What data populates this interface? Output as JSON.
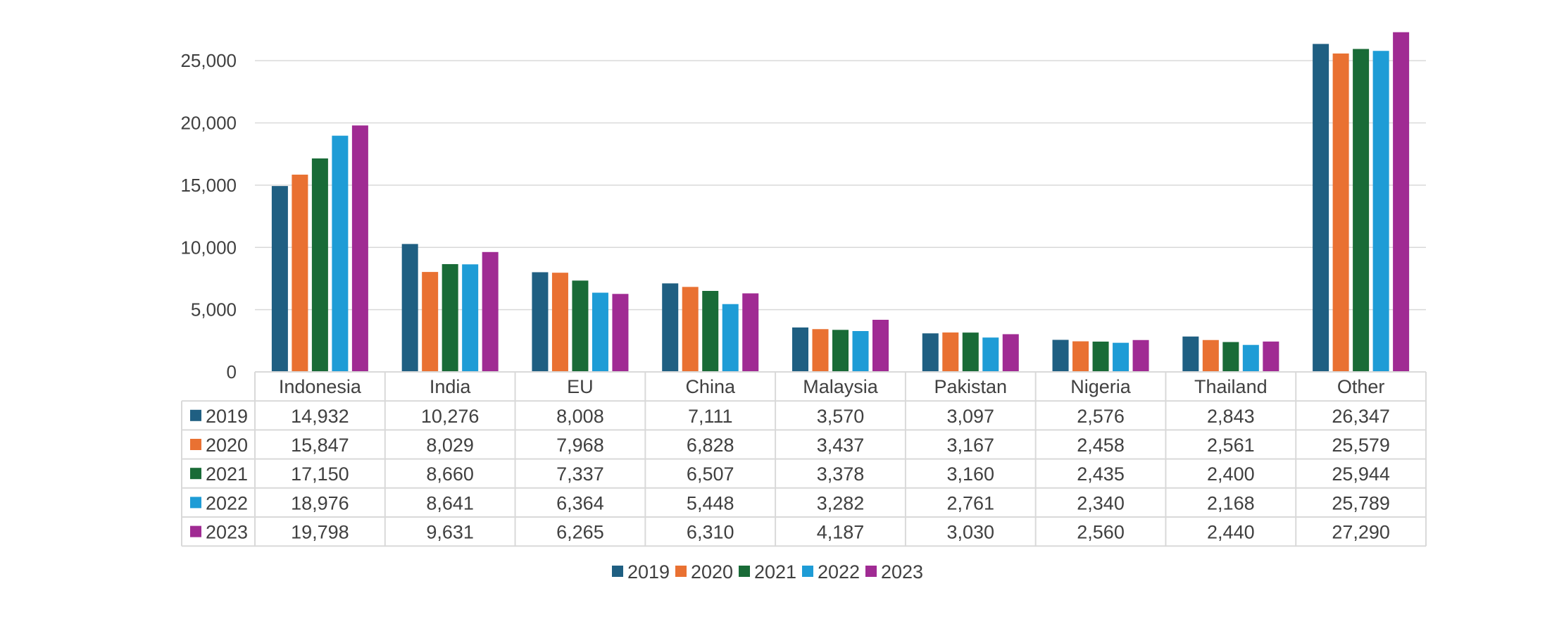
{
  "chart_data": {
    "type": "bar",
    "title": "",
    "xlabel": "",
    "ylabel": "",
    "ylim": [
      0,
      27500
    ],
    "y_ticks": [
      0,
      5000,
      10000,
      15000,
      20000,
      25000
    ],
    "y_tick_labels": [
      "0",
      "5,000",
      "10,000",
      "15,000",
      "20,000",
      "25,000"
    ],
    "grid": true,
    "legend_position": "bottom-center",
    "data_table": true,
    "categories": [
      "Indonesia",
      "India",
      "EU",
      "China",
      "Malaysia",
      "Pakistan",
      "Nigeria",
      "Thailand",
      "Other"
    ],
    "series": [
      {
        "name": "2019",
        "color": "#1f5f82",
        "values": [
          14932,
          10276,
          8008,
          7111,
          3570,
          3097,
          2576,
          2843,
          26347
        ],
        "labels": [
          "14,932",
          "10,276",
          "8,008",
          "7,111",
          "3,570",
          "3,097",
          "2,576",
          "2,843",
          "26,347"
        ]
      },
      {
        "name": "2020",
        "color": "#e97132",
        "values": [
          15847,
          8029,
          7968,
          6828,
          3437,
          3167,
          2458,
          2561,
          25579
        ],
        "labels": [
          "15,847",
          "8,029",
          "7,968",
          "6,828",
          "3,437",
          "3,167",
          "2,458",
          "2,561",
          "25,579"
        ]
      },
      {
        "name": "2021",
        "color": "#196b37",
        "values": [
          17150,
          8660,
          7337,
          6507,
          3378,
          3160,
          2435,
          2400,
          25944
        ],
        "labels": [
          "17,150",
          "8,660",
          "7,337",
          "6,507",
          "3,378",
          "3,160",
          "2,435",
          "2,400",
          "25,944"
        ]
      },
      {
        "name": "2022",
        "color": "#1e9cd6",
        "values": [
          18976,
          8641,
          6364,
          5448,
          3282,
          2761,
          2340,
          2168,
          25789
        ],
        "labels": [
          "18,976",
          "8,641",
          "6,364",
          "5,448",
          "3,282",
          "2,761",
          "2,340",
          "2,168",
          "25,789"
        ]
      },
      {
        "name": "2023",
        "color": "#a02b93",
        "values": [
          19798,
          9631,
          6265,
          6310,
          4187,
          3030,
          2560,
          2440,
          27290
        ],
        "labels": [
          "19,798",
          "9,631",
          "6,265",
          "6,310",
          "4,187",
          "3,030",
          "2,560",
          "2,440",
          "27,290"
        ]
      }
    ]
  }
}
